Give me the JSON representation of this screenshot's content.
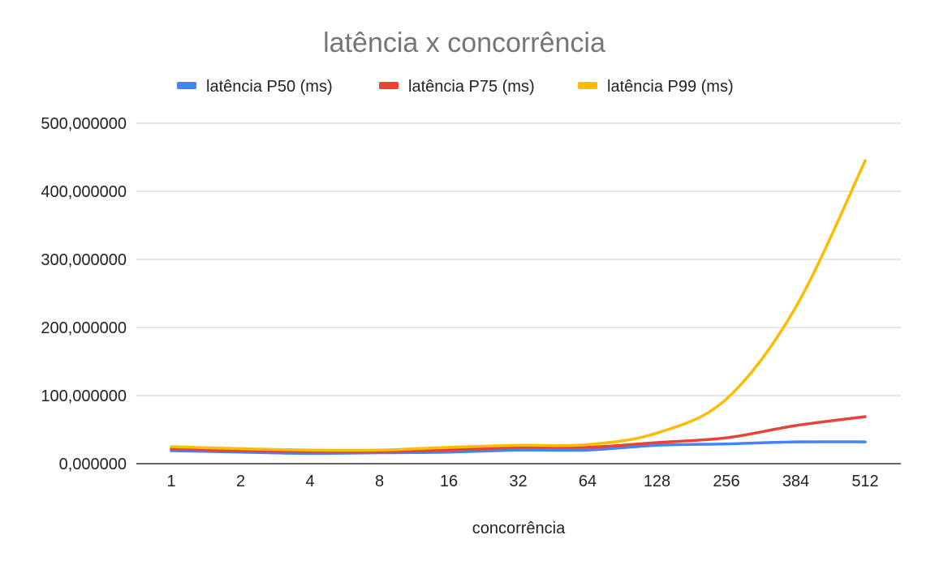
{
  "chart_data": {
    "type": "line",
    "title": "latência x concorrência",
    "xlabel": "concorrência",
    "ylabel": "",
    "categories": [
      "1",
      "2",
      "4",
      "8",
      "16",
      "32",
      "64",
      "128",
      "256",
      "384",
      "512"
    ],
    "ylim": [
      0,
      500
    ],
    "yticks": [
      0,
      100,
      200,
      300,
      400,
      500
    ],
    "ytick_labels": [
      "0,000000",
      "100,000000",
      "200,000000",
      "300,000000",
      "400,000000",
      "500,000000"
    ],
    "grid": true,
    "legend_position": "top",
    "series": [
      {
        "name": "latência P50 (ms)",
        "color": "#4285F4",
        "values": [
          19,
          17,
          15,
          16,
          17,
          20,
          20,
          27,
          29,
          32,
          32
        ]
      },
      {
        "name": "latência P75 (ms)",
        "color": "#EA4335",
        "values": [
          22,
          19,
          18,
          18,
          20,
          24,
          24,
          31,
          38,
          56,
          69
        ]
      },
      {
        "name": "latência P99 (ms)",
        "color": "#FBBC04",
        "values": [
          25,
          22,
          20,
          20,
          24,
          27,
          28,
          45,
          95,
          230,
          445
        ]
      }
    ]
  }
}
